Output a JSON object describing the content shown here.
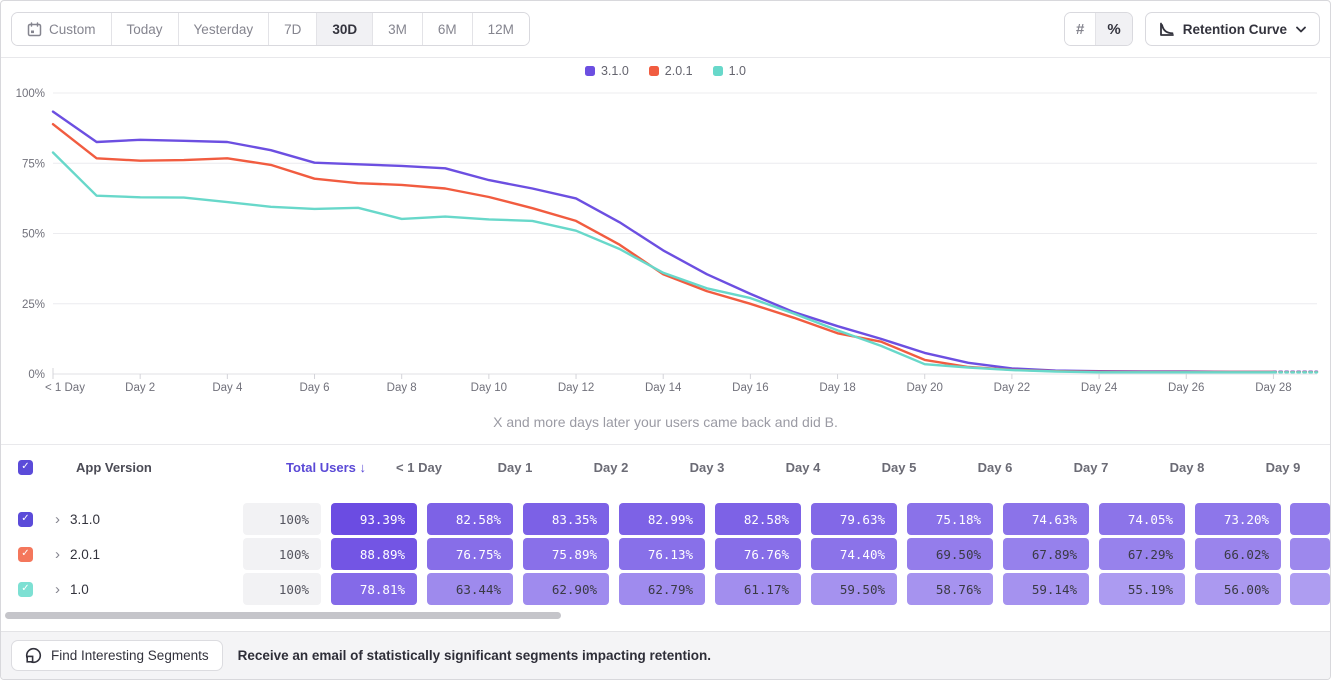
{
  "toolbar": {
    "date_ranges": [
      {
        "label": "Custom",
        "icon": "calendar-icon",
        "active": false
      },
      {
        "label": "Today",
        "active": false
      },
      {
        "label": "Yesterday",
        "active": false
      },
      {
        "label": "7D",
        "active": false
      },
      {
        "label": "30D",
        "active": true
      },
      {
        "label": "3M",
        "active": false
      },
      {
        "label": "6M",
        "active": false
      },
      {
        "label": "12M",
        "active": false
      }
    ],
    "value_mode": [
      {
        "glyph": "#",
        "icon": "number-icon",
        "active": false
      },
      {
        "glyph": "%",
        "icon": "percent-icon",
        "active": true
      }
    ],
    "chart_type": {
      "label": "Retention Curve",
      "icon": "retention-curve-icon"
    }
  },
  "chart_data": {
    "type": "line",
    "subtitle": "X and more days later your users came back and did B.",
    "x_unit": "days",
    "x_range": [
      0,
      29
    ],
    "x_tick_labels": [
      "< 1 Day",
      "Day 2",
      "Day 4",
      "Day 6",
      "Day 8",
      "Day 10",
      "Day 12",
      "Day 14",
      "Day 16",
      "Day 18",
      "Day 20",
      "Day 22",
      "Day 24",
      "Day 26",
      "Day 28"
    ],
    "ylim": [
      0,
      100
    ],
    "y_tick_labels": [
      "0%",
      "25%",
      "50%",
      "75%",
      "100%"
    ],
    "grid": true,
    "legend_position": "top",
    "last_segment_dashed": true,
    "series": [
      {
        "name": "3.1.0",
        "color": "#6C4FE1",
        "values": [
          93.39,
          82.58,
          83.35,
          82.99,
          82.58,
          79.63,
          75.18,
          74.63,
          74.05,
          73.2,
          69,
          66,
          62.5,
          54,
          44,
          35.5,
          28.5,
          22,
          17,
          12.5,
          7.5,
          4,
          2,
          1.2,
          1,
          0.9,
          0.9,
          0.8,
          0.8,
          0.8
        ]
      },
      {
        "name": "2.0.1",
        "color": "#F15C40",
        "values": [
          88.89,
          76.75,
          75.89,
          76.13,
          76.76,
          74.4,
          69.5,
          67.89,
          67.29,
          66.02,
          63,
          59,
          54.5,
          46,
          35.5,
          29.5,
          25,
          20,
          14.5,
          11.5,
          5,
          2.5,
          1.5,
          1,
          0.8,
          0.7,
          0.7,
          0.7,
          0.7,
          0.7
        ]
      },
      {
        "name": "1.0",
        "color": "#68D8CA",
        "values": [
          78.81,
          63.44,
          62.9,
          62.79,
          61.17,
          59.5,
          58.76,
          59.14,
          55.19,
          56.0,
          55,
          54.5,
          51,
          44.5,
          36,
          30.5,
          27,
          21.5,
          15.5,
          10,
          3.5,
          2.3,
          1.4,
          0.9,
          0.6,
          0.6,
          0.6,
          0.6,
          0.6,
          0.6
        ]
      }
    ]
  },
  "table": {
    "header": {
      "name_column": "App Version",
      "total_column": "Total Users",
      "sort_arrow": "↓",
      "day_columns": [
        "< 1 Day",
        "Day 1",
        "Day 2",
        "Day 3",
        "Day 4",
        "Day 5",
        "Day 6",
        "Day 7",
        "Day 8",
        "Day 9"
      ]
    },
    "rows": [
      {
        "name": "3.1.0",
        "checkbox_color": "#5B4BD9",
        "total": "100%",
        "values": [
          "93.39%",
          "82.58%",
          "83.35%",
          "82.99%",
          "82.58%",
          "79.63%",
          "75.18%",
          "74.63%",
          "74.05%",
          "73.20%"
        ]
      },
      {
        "name": "2.0.1",
        "checkbox_color": "#F4775C",
        "total": "100%",
        "values": [
          "88.89%",
          "76.75%",
          "75.89%",
          "76.13%",
          "76.76%",
          "74.40%",
          "69.50%",
          "67.89%",
          "67.29%",
          "66.02%"
        ]
      },
      {
        "name": "1.0",
        "checkbox_color": "#7DE0D3",
        "total": "100%",
        "values": [
          "78.81%",
          "63.44%",
          "62.90%",
          "62.79%",
          "61.17%",
          "59.50%",
          "58.76%",
          "59.14%",
          "55.19%",
          "56.00%"
        ]
      }
    ],
    "heatmap": {
      "low_color": "#AE9DF1",
      "high_color": "#6A4BE2",
      "white_text_threshold": 73,
      "dark_text_color": "#3A3A44",
      "value_domain": [
        54,
        94
      ]
    }
  },
  "footer": {
    "button_label": "Find Interesting Segments",
    "message": "Receive an email of statistically significant segments impacting retention."
  }
}
